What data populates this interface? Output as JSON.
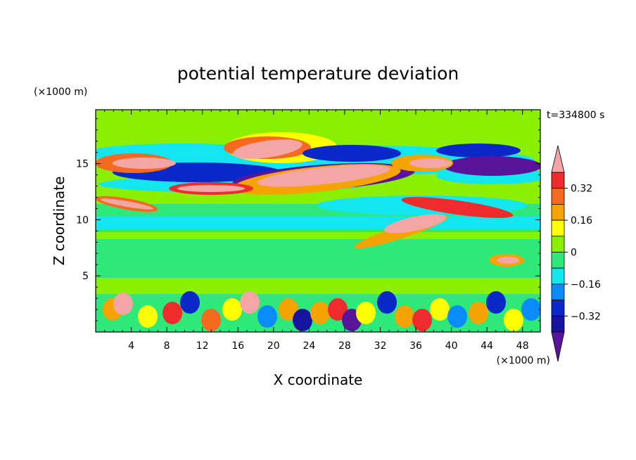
{
  "chart_data": {
    "type": "heatmap",
    "title": "potential temperature deviation",
    "time_label": "t=334800 s",
    "xlabel": "X coordinate",
    "ylabel": "Z coordinate",
    "x_unit": "(×1000 m)",
    "y_unit": "(×1000 m)",
    "x_range": [
      0,
      50
    ],
    "y_range": [
      0,
      19.8
    ],
    "x_ticks": [
      4,
      8,
      12,
      16,
      20,
      24,
      28,
      32,
      36,
      40,
      44,
      48
    ],
    "y_ticks": [
      5,
      10,
      15
    ],
    "contour_levels": [
      -0.4,
      -0.32,
      -0.24,
      -0.16,
      -0.08,
      0,
      0.08,
      0.16,
      0.24,
      0.32,
      0.4
    ],
    "colorbar_labels": [
      {
        "text": "0.32",
        "value": 0.32
      },
      {
        "text": "0.16",
        "value": 0.16
      },
      {
        "text": "0",
        "value": 0
      },
      {
        "text": "−0.16",
        "value": -0.16
      },
      {
        "text": "−0.32",
        "value": -0.32
      }
    ],
    "colors": {
      "above_max": "#f4a6a6",
      "c_0.32_0.40": "#ef2b2b",
      "c_0.24_0.32": "#f56a1f",
      "c_0.16_0.24": "#f5a300",
      "c_0.08_0.16": "#ffff00",
      "c_0.00_0.08": "#8bf000",
      "c_-0.08_0.00": "#2ee87a",
      "c_-0.16_-0.08": "#14e6f0",
      "c_-0.24_-0.16": "#0a8cff",
      "c_-0.32_-0.24": "#0a28c8",
      "c_-0.40_-0.32": "#1414a0",
      "below_min": "#5a149b"
    }
  }
}
